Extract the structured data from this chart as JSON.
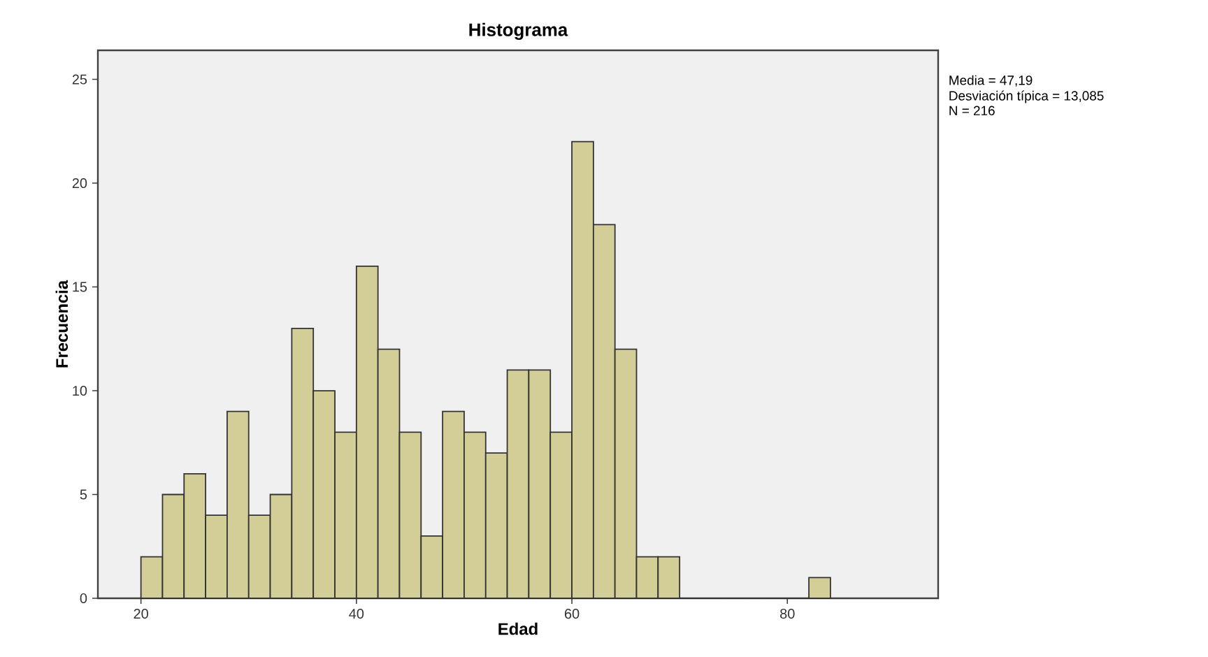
{
  "chart_data": {
    "type": "histogram",
    "title": "Histograma",
    "xlabel": "Edad",
    "ylabel": "Frecuencia",
    "bins": [
      20,
      22,
      24,
      26,
      28,
      30,
      32,
      34,
      36,
      38,
      40,
      42,
      44,
      46,
      48,
      50,
      52,
      54,
      56,
      58,
      60,
      62,
      64,
      66,
      68,
      70,
      72,
      74,
      76,
      78,
      80,
      82,
      84
    ],
    "values": [
      2,
      5,
      6,
      4,
      9,
      4,
      5,
      13,
      10,
      8,
      16,
      12,
      8,
      3,
      9,
      8,
      7,
      11,
      11,
      8,
      22,
      18,
      12,
      2,
      2,
      0,
      0,
      0,
      0,
      0,
      0,
      1
    ],
    "color": "#d3ce97",
    "xlim": [
      16,
      94
    ],
    "xticks": [
      20,
      40,
      60,
      80
    ],
    "ylim": [
      0,
      26.4
    ],
    "yticks": [
      0,
      5,
      10,
      15,
      20,
      25
    ],
    "grid": false,
    "annotations": [
      "Media = 47,19",
      "Desviación típica = 13,085",
      "N = 216"
    ]
  }
}
